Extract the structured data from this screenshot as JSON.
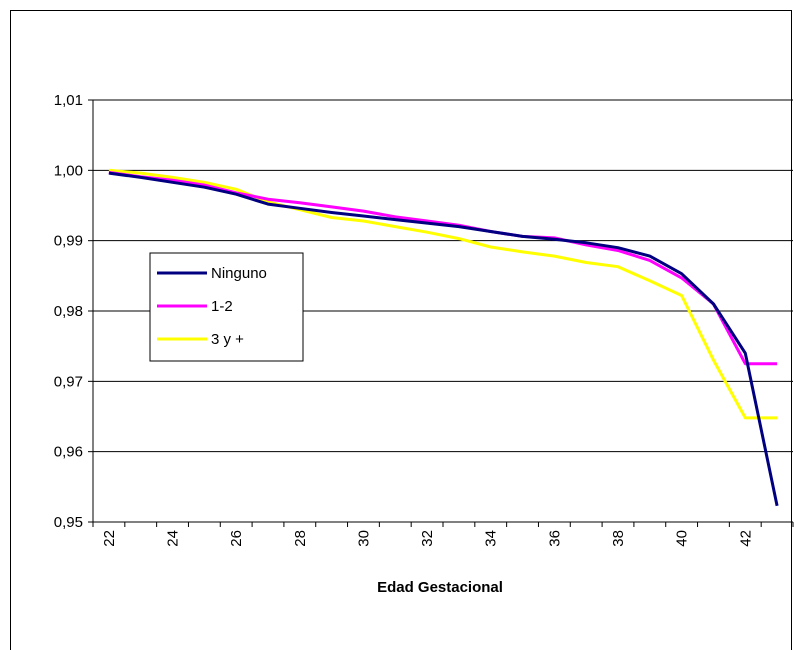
{
  "chart_data": {
    "type": "line",
    "title": "",
    "xlabel": "Edad Gestacional",
    "ylabel": "",
    "x": [
      22,
      23,
      24,
      25,
      26,
      27,
      28,
      29,
      30,
      31,
      32,
      33,
      34,
      35,
      36,
      37,
      38,
      39,
      40,
      41,
      42,
      43
    ],
    "xticks": [
      "22",
      "24",
      "26",
      "28",
      "30",
      "32",
      "34",
      "36",
      "38",
      "40",
      "42"
    ],
    "yticks": [
      "0,95",
      "0,96",
      "0,97",
      "0,98",
      "0,99",
      "1,00",
      "1,01"
    ],
    "ylim": [
      0.95,
      1.01
    ],
    "grid": true,
    "legend_position": "left-middle",
    "series": [
      {
        "name": "Ninguno",
        "color": "#000080",
        "values": [
          0.9996,
          0.999,
          0.9983,
          0.9976,
          0.9966,
          0.9952,
          0.9946,
          0.994,
          0.9935,
          0.993,
          0.9925,
          0.992,
          0.9913,
          0.9906,
          0.9902,
          0.9897,
          0.989,
          0.9878,
          0.9853,
          0.981,
          0.974,
          0.9523
        ]
      },
      {
        "name": "1-2",
        "color": "#FF00FF",
        "values": [
          0.9997,
          0.9991,
          0.9986,
          0.9979,
          0.9968,
          0.9959,
          0.9954,
          0.9948,
          0.9942,
          0.9934,
          0.9928,
          0.9922,
          0.9913,
          0.9906,
          0.9904,
          0.9894,
          0.9886,
          0.9872,
          0.9847,
          0.981,
          0.9725,
          0.9725
        ]
      },
      {
        "name": "3 y +",
        "color": "#FFFF00",
        "values": [
          1.0,
          0.9996,
          0.999,
          0.9983,
          0.9973,
          0.9955,
          0.9944,
          0.9933,
          0.9928,
          0.992,
          0.9912,
          0.9903,
          0.9891,
          0.9884,
          0.9878,
          0.9869,
          0.9863,
          0.9843,
          0.9822,
          0.973,
          0.9648,
          0.9648
        ]
      }
    ]
  }
}
